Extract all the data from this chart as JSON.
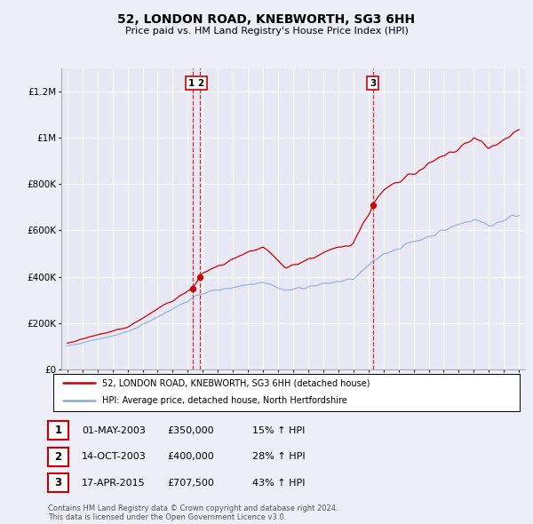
{
  "title": "52, LONDON ROAD, KNEBWORTH, SG3 6HH",
  "subtitle": "Price paid vs. HM Land Registry's House Price Index (HPI)",
  "legend_line1": "52, LONDON ROAD, KNEBWORTH, SG3 6HH (detached house)",
  "legend_line2": "HPI: Average price, detached house, North Hertfordshire",
  "footnote1": "Contains HM Land Registry data © Crown copyright and database right 2024.",
  "footnote2": "This data is licensed under the Open Government Licence v3.0.",
  "transactions": [
    {
      "num": 1,
      "date": "01-MAY-2003",
      "price": 350000,
      "pct": "15%",
      "dir": "↑"
    },
    {
      "num": 2,
      "date": "14-OCT-2003",
      "price": 400000,
      "pct": "28%",
      "dir": "↑"
    },
    {
      "num": 3,
      "date": "17-APR-2015",
      "price": 707500,
      "pct": "43%",
      "dir": "↑"
    }
  ],
  "sale_t": [
    2003.33,
    2003.79,
    2015.29
  ],
  "sale_prices": [
    350000,
    400000,
    707500
  ],
  "background_color": "#eeeef8",
  "plot_bg_color": "#e8e8f4",
  "red_color": "#cc0000",
  "blue_color": "#88aadd",
  "ylim": [
    0,
    1300000
  ],
  "yticks": [
    0,
    200000,
    400000,
    600000,
    800000,
    1000000,
    1200000
  ],
  "xlim_left": 1994.6,
  "xlim_right": 2025.4
}
